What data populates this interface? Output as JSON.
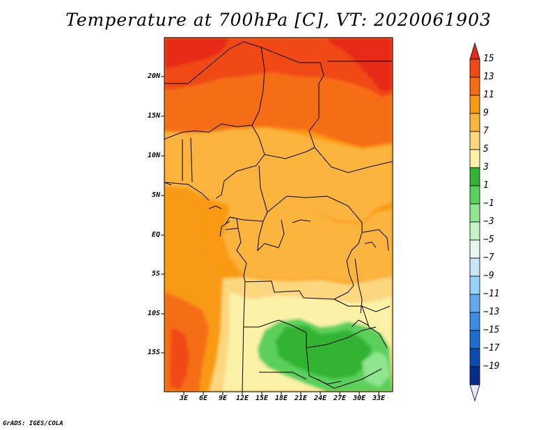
{
  "title": "Temperature at 700hPa [C], VT: 2020061903",
  "credit": "GrADS: IGES/COLA",
  "lat_labels": [
    "20N",
    "15N",
    "10N",
    "5N",
    "EQ",
    "5S",
    "10S",
    "15S"
  ],
  "lon_labels": [
    "3E",
    "6E",
    "9E",
    "12E",
    "15E",
    "18E",
    "21E",
    "24E",
    "27E",
    "30E",
    "33E"
  ],
  "colorbar": {
    "labels": [
      "15",
      "13",
      "11",
      "9",
      "7",
      "5",
      "3",
      "1",
      "−1",
      "−3",
      "−5",
      "−7",
      "−9",
      "−11",
      "−13",
      "−15",
      "−17",
      "−19"
    ],
    "colors": [
      "#e62a14",
      "#f04a12",
      "#f56e12",
      "#f99a12",
      "#fbb43c",
      "#fdd780",
      "#fbf2a8",
      "#32b432",
      "#5ad05a",
      "#8ee68e",
      "#c4f4c4",
      "#e6f8f0",
      "#c8e6fa",
      "#96d2fa",
      "#64aaf0",
      "#3c8ce6",
      "#1e6ed2",
      "#0a4bb4",
      "#082c8c",
      "#e6e6fa"
    ]
  },
  "map": {
    "region": "Central Africa",
    "lon_range": [
      0,
      35
    ],
    "lat_range": [
      -20,
      24.5
    ],
    "variable": "700hPa temperature",
    "units": "C"
  }
}
